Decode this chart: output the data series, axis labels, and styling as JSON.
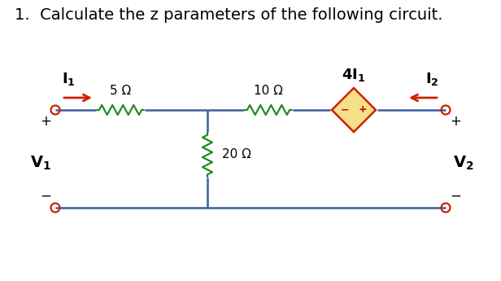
{
  "title": "1.  Calculate the z parameters of the following circuit.",
  "title_fontsize": 14,
  "bg_color": "#ffffff",
  "wire_color": "#3a5fa0",
  "resistor_horiz_color": "#228B22",
  "resistor_vert_color": "#228B22",
  "diamond_fill": "#f5e08a",
  "diamond_edge": "#cc2200",
  "arrow_color": "#cc2200",
  "terminal_color": "#cc2200",
  "text_color": "#000000",
  "text_dark": "#1a1a1a",
  "label_5ohm": "5 Ω",
  "label_10ohm": "10 Ω",
  "label_20ohm": "20 Ω"
}
